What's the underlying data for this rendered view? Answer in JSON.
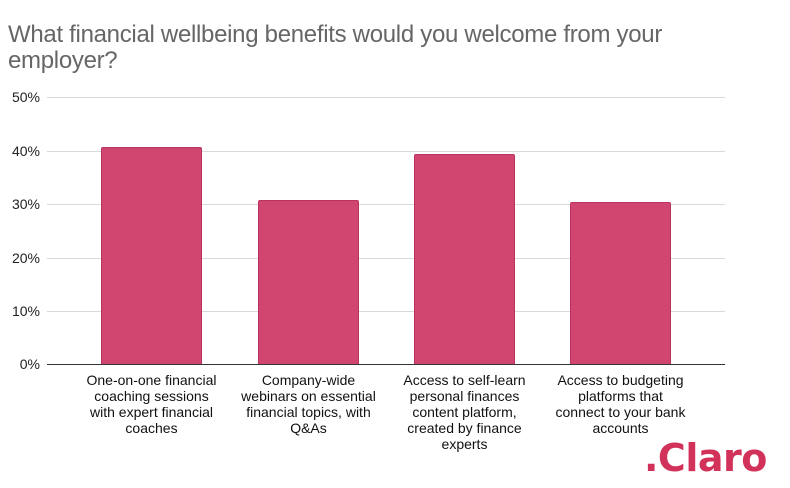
{
  "chart_data": {
    "type": "bar",
    "title": "What financial wellbeing benefits would you welcome from your employer?",
    "xlabel": "",
    "ylabel": "",
    "categories": [
      "One-on-one financial coaching sessions with expert financial coaches",
      "Company-wide webinars on essential financial topics, with Q&As",
      "Access to self-learn personal finances content platform, created by finance experts",
      "Access to budgeting platforms that connect to your bank accounts"
    ],
    "values": [
      40.6,
      30.7,
      39.3,
      30.3
    ],
    "unit": "%",
    "ylim": [
      0,
      50
    ],
    "yticks": [
      "0%",
      "10%",
      "20%",
      "30%",
      "40%",
      "50%"
    ],
    "grid": true,
    "legend": null,
    "bar_color": "#d14670"
  },
  "title": "What financial wellbeing benefits would you welcome from your employer?",
  "yticks": [
    "50%",
    "40%",
    "30%",
    "20%",
    "10%",
    "0%"
  ],
  "labels": [
    [
      "One-on-one financial",
      "coaching sessions",
      "with expert financial",
      "coaches"
    ],
    [
      "Company-wide",
      "webinars on essential",
      "financial topics, with",
      "Q&As"
    ],
    [
      "Access to self-learn",
      "personal finances",
      "content platform,",
      "created by finance",
      "experts"
    ],
    [
      "Access to budgeting",
      "platforms that",
      "connect to your bank",
      "accounts"
    ]
  ],
  "logo": ".Claro"
}
